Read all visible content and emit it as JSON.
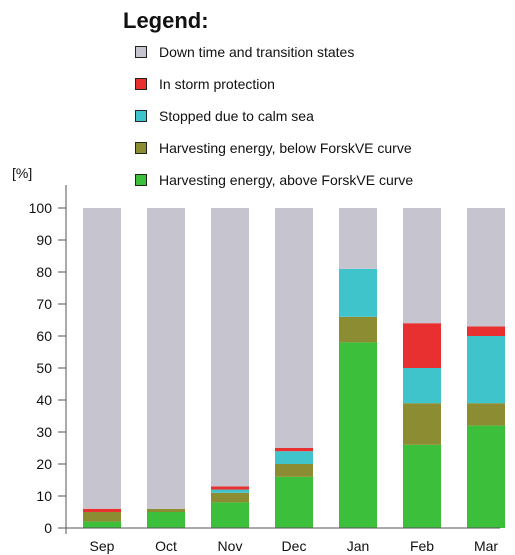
{
  "chart_data": {
    "type": "bar",
    "stacked": true,
    "title": "",
    "xlabel": "",
    "ylabel": "[%]",
    "ylim": [
      0,
      100
    ],
    "yticks": [
      0,
      10,
      20,
      30,
      40,
      50,
      60,
      70,
      80,
      90,
      100
    ],
    "categories": [
      "Sep",
      "Oct",
      "Nov",
      "Dec",
      "Jan",
      "Feb",
      "Mar"
    ],
    "grid": false,
    "legend": {
      "title": "Legend:",
      "placement": "top",
      "entries": [
        "Down time and transition states",
        "In storm protection",
        "Stopped due to calm sea",
        "Harvesting energy, below ForskVE curve",
        "Harvesting energy, above ForskVE curve"
      ]
    },
    "series": [
      {
        "name": "Harvesting energy, above ForskVE curve",
        "color": "#3cc03c",
        "values": [
          2,
          5,
          8,
          16,
          58,
          26,
          32
        ]
      },
      {
        "name": "Harvesting energy, below ForskVE curve",
        "color": "#8c8c32",
        "values": [
          3,
          1,
          3,
          4,
          8,
          13,
          7
        ]
      },
      {
        "name": "Stopped due to calm sea",
        "color": "#40c4cc",
        "values": [
          0,
          0,
          1,
          4,
          15,
          11,
          21
        ]
      },
      {
        "name": "In storm protection",
        "color": "#e83030",
        "values": [
          1,
          0,
          1,
          1,
          0,
          14,
          3
        ]
      },
      {
        "name": "Down time and transition states",
        "color": "#c6c4ce",
        "values": [
          94,
          94,
          87,
          75,
          19,
          36,
          37
        ]
      }
    ]
  }
}
